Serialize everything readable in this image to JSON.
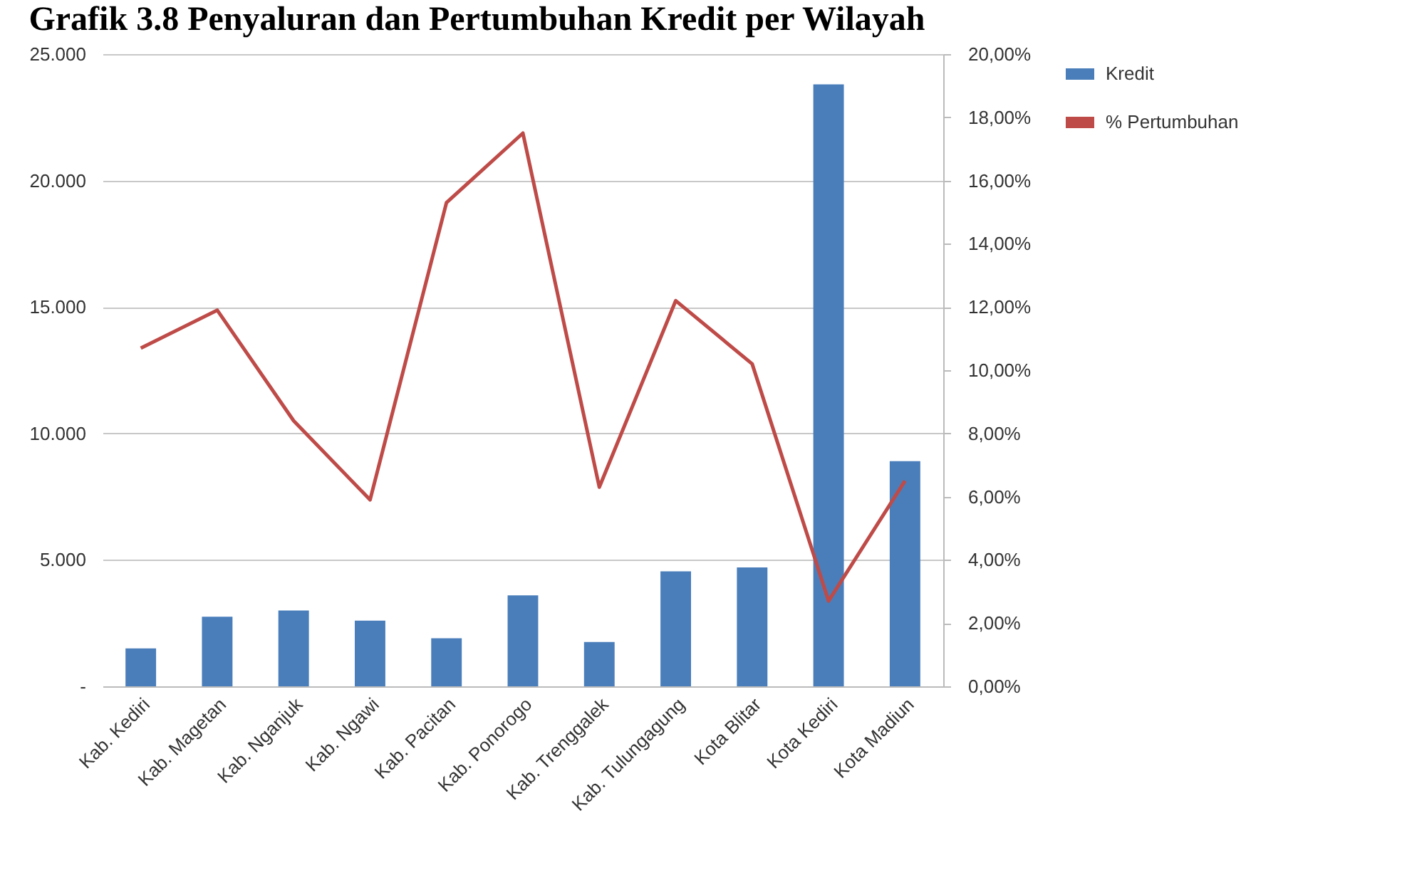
{
  "chart_data": {
    "type": "bar",
    "title": "Grafik 3.8 Penyaluran dan Pertumbuhan Kredit per Wilayah",
    "categories": [
      "Kab. Kediri",
      "Kab. Magetan",
      "Kab. Nganjuk",
      "Kab. Ngawi",
      "Kab. Pacitan",
      "Kab. Ponorogo",
      "Kab. Trenggalek",
      "Kab. Tulungagung",
      "Kota Blitar",
      "Kota Kediri",
      "Kota Madiun"
    ],
    "series": [
      {
        "name": "Kredit",
        "color": "#4a7ebb",
        "values": [
          1500,
          2750,
          3000,
          2600,
          1900,
          3600,
          1750,
          4550,
          4700,
          23800,
          8900
        ]
      },
      {
        "name": "% Pertumbuhan",
        "type": "line",
        "axis": "y2",
        "color": "#be4b48",
        "values": [
          10.7,
          11.9,
          8.4,
          5.9,
          15.3,
          17.5,
          6.3,
          12.2,
          10.2,
          2.7,
          6.5
        ]
      }
    ],
    "ylim": [
      0,
      25000
    ],
    "yticks": [
      {
        "value": 0,
        "label": "-"
      },
      {
        "value": 5000,
        "label": "5.000"
      },
      {
        "value": 10000,
        "label": "10.000"
      },
      {
        "value": 15000,
        "label": "15.000"
      },
      {
        "value": 20000,
        "label": "20.000"
      },
      {
        "value": 25000,
        "label": "25.000"
      }
    ],
    "y2lim": [
      0,
      20
    ],
    "y2ticks": [
      {
        "value": 0,
        "label": "0,00%"
      },
      {
        "value": 2,
        "label": "2,00%"
      },
      {
        "value": 4,
        "label": "4,00%"
      },
      {
        "value": 6,
        "label": "6,00%"
      },
      {
        "value": 8,
        "label": "8,00%"
      },
      {
        "value": 10,
        "label": "10,00%"
      },
      {
        "value": 12,
        "label": "12,00%"
      },
      {
        "value": 14,
        "label": "14,00%"
      },
      {
        "value": 16,
        "label": "16,00%"
      },
      {
        "value": 18,
        "label": "18,00%"
      },
      {
        "value": 20,
        "label": "20,00%"
      }
    ],
    "grid": "y",
    "legend": "right"
  }
}
